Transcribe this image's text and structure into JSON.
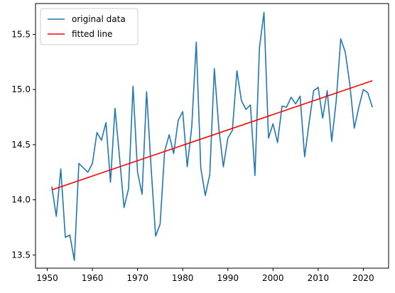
{
  "chart_data": {
    "type": "line",
    "title": "",
    "xlabel": "",
    "ylabel": "",
    "xlim": [
      1947.4,
      2025.6
    ],
    "ylim": [
      13.38,
      15.78
    ],
    "x_ticks": [
      1950,
      1960,
      1970,
      1980,
      1990,
      2000,
      2010,
      2020
    ],
    "y_ticks": [
      13.5,
      14.0,
      14.5,
      15.0,
      15.5
    ],
    "grid": false,
    "legend": {
      "position": "top-left"
    },
    "series": [
      {
        "name": "original data",
        "color": "#1f77b4",
        "x": [
          1951,
          1952,
          1953,
          1954,
          1955,
          1956,
          1957,
          1958,
          1959,
          1960,
          1961,
          1962,
          1963,
          1964,
          1965,
          1966,
          1967,
          1968,
          1969,
          1970,
          1971,
          1972,
          1973,
          1974,
          1975,
          1976,
          1977,
          1978,
          1979,
          1980,
          1981,
          1982,
          1983,
          1984,
          1985,
          1986,
          1987,
          1988,
          1989,
          1990,
          1991,
          1992,
          1993,
          1994,
          1995,
          1996,
          1997,
          1998,
          1999,
          2000,
          2001,
          2002,
          2003,
          2004,
          2005,
          2006,
          2007,
          2008,
          2009,
          2010,
          2011,
          2012,
          2013,
          2014,
          2015,
          2016,
          2017,
          2018,
          2019,
          2020,
          2021,
          2022
        ],
        "y": [
          14.12,
          13.85,
          14.28,
          13.66,
          13.68,
          13.45,
          14.33,
          14.29,
          14.25,
          14.33,
          14.61,
          14.54,
          14.7,
          14.16,
          14.83,
          14.39,
          13.93,
          14.1,
          15.03,
          14.25,
          14.05,
          14.98,
          14.29,
          13.67,
          13.78,
          14.44,
          14.59,
          14.42,
          14.72,
          14.8,
          14.3,
          14.66,
          15.43,
          14.29,
          14.04,
          14.23,
          15.19,
          14.65,
          14.3,
          14.56,
          14.63,
          15.17,
          14.9,
          14.82,
          14.86,
          14.22,
          15.38,
          15.7,
          14.56,
          14.69,
          14.52,
          14.85,
          14.84,
          14.93,
          14.87,
          14.94,
          14.39,
          14.7,
          14.99,
          15.02,
          14.74,
          14.99,
          14.53,
          14.9,
          15.46,
          15.34,
          15.05,
          14.65,
          14.84,
          15.0,
          14.97,
          14.84
        ]
      },
      {
        "name": "fitted line",
        "color": "#ff0000",
        "x": [
          1951,
          2022
        ],
        "y": [
          14.09,
          15.08
        ]
      }
    ]
  }
}
